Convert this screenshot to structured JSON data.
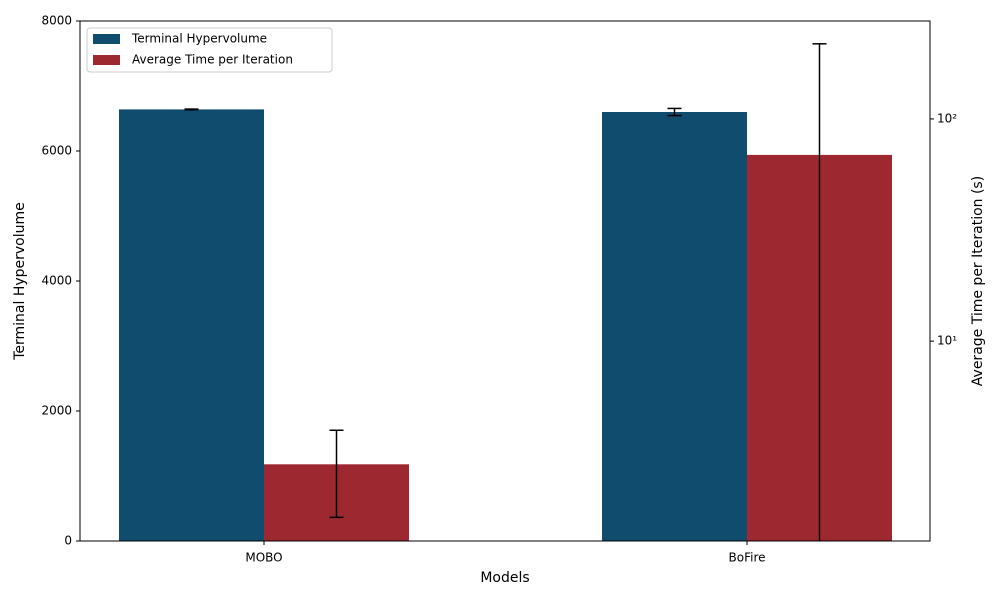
{
  "chart_data": {
    "type": "bar",
    "x_label": "Models",
    "y_label": "Terminal Hypervolume",
    "y2_label": "Average Time per Iteration (s)",
    "categories": [
      "MOBO",
      "BoFire"
    ],
    "series": [
      {
        "name": "Terminal Hypervolume",
        "color": "#0f4c6e",
        "values": [
          6640,
          6600
        ],
        "errors": [
          5,
          55
        ]
      },
      {
        "name": "Average Time per Iteration",
        "color": "#9e2830",
        "axis": "y2",
        "values": [
          2.79,
          68.9
        ],
        "errors": [
          1.18,
          149
        ]
      }
    ],
    "ylim": [
      0,
      8000
    ],
    "yticks": [
      0,
      2000,
      4000,
      6000,
      8000
    ],
    "y2lim": [
      1.26,
      276
    ],
    "y2scale": "log",
    "y2ticks": [
      {
        "value": 10,
        "label": "10¹"
      },
      {
        "value": 100,
        "label": "10²"
      }
    ],
    "legend": "upper left"
  }
}
